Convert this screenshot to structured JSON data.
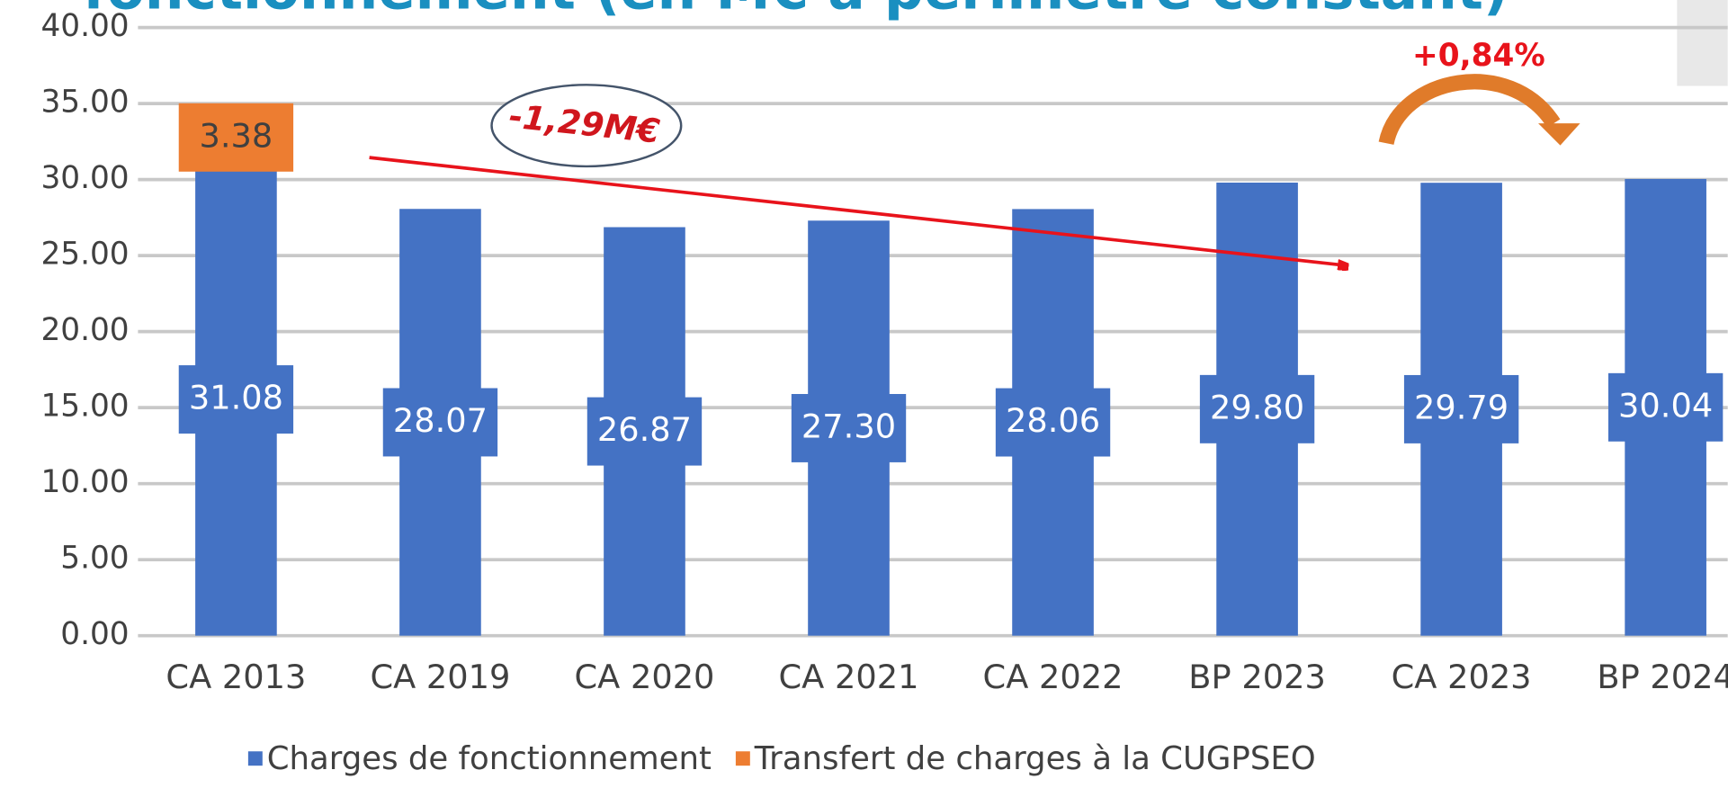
{
  "chart_data": {
    "type": "bar",
    "stacked": true,
    "title": "fonctionnement (en M€ à périmètre constant)",
    "categories": [
      "CA 2013",
      "CA 2019",
      "CA 2020",
      "CA 2021",
      "CA 2022",
      "BP 2023",
      "CA 2023",
      "BP 2024"
    ],
    "series": [
      {
        "name": "Charges de fonctionnement",
        "color": "#4472c4",
        "values": [
          31.08,
          28.07,
          26.87,
          27.3,
          28.06,
          29.8,
          29.79,
          30.04
        ],
        "value_labels": [
          "31.08",
          "28.07",
          "26.87",
          "27.30",
          "28.06",
          "29.80",
          "29.79",
          "30.04"
        ]
      },
      {
        "name": "Transfert de charges à la CUGPSEO",
        "color": "#ed7d31",
        "values": [
          3.38,
          null,
          null,
          null,
          null,
          null,
          null,
          null
        ],
        "value_labels": [
          "3.38",
          null,
          null,
          null,
          null,
          null,
          null,
          null
        ]
      }
    ],
    "ylim": [
      0,
      40
    ],
    "yticks": [
      {
        "value": 0,
        "label": "0.00"
      },
      {
        "value": 5,
        "label": "5.00"
      },
      {
        "value": 10,
        "label": "10.00"
      },
      {
        "value": 15,
        "label": "15.00"
      },
      {
        "value": 20,
        "label": "20.00"
      },
      {
        "value": 25,
        "label": "25.00"
      },
      {
        "value": 30,
        "label": "30.00"
      },
      {
        "value": 35,
        "label": "35.00"
      },
      {
        "value": 40,
        "label": "40.00"
      }
    ],
    "grid": true,
    "legend": "bottom",
    "annotations": [
      "-1,29M€",
      "+0,84%"
    ]
  }
}
